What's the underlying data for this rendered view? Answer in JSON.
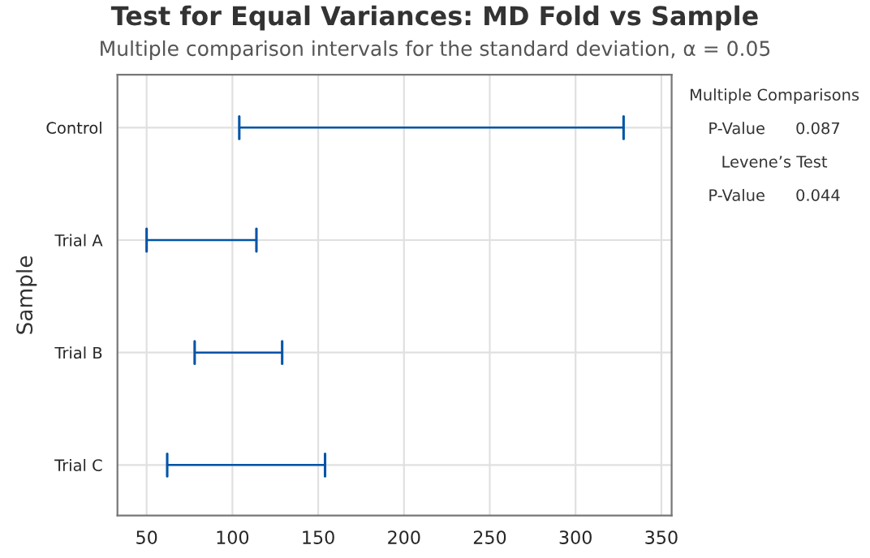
{
  "chart_data": {
    "type": "bar",
    "orientation": "horizontal",
    "title": "Test for Equal Variances: MD Fold vs Sample",
    "subtitle": "Multiple comparison intervals for the standard deviation, α = 0.05",
    "ylabel": "Sample",
    "categories": [
      "Control",
      "Trial A",
      "Trial B",
      "Trial C"
    ],
    "base": [
      104,
      50,
      78,
      62
    ],
    "values": [
      224,
      64,
      51,
      92
    ],
    "color": "#0054a6",
    "xlim": [
      33,
      356
    ],
    "xticks": [
      50,
      100,
      150,
      200,
      250,
      300,
      350
    ],
    "grid": true,
    "annotations": [
      "Multiple Comparisons",
      "P-Value      0.087",
      "Levene’s Test",
      "P-Value      0.044"
    ]
  }
}
